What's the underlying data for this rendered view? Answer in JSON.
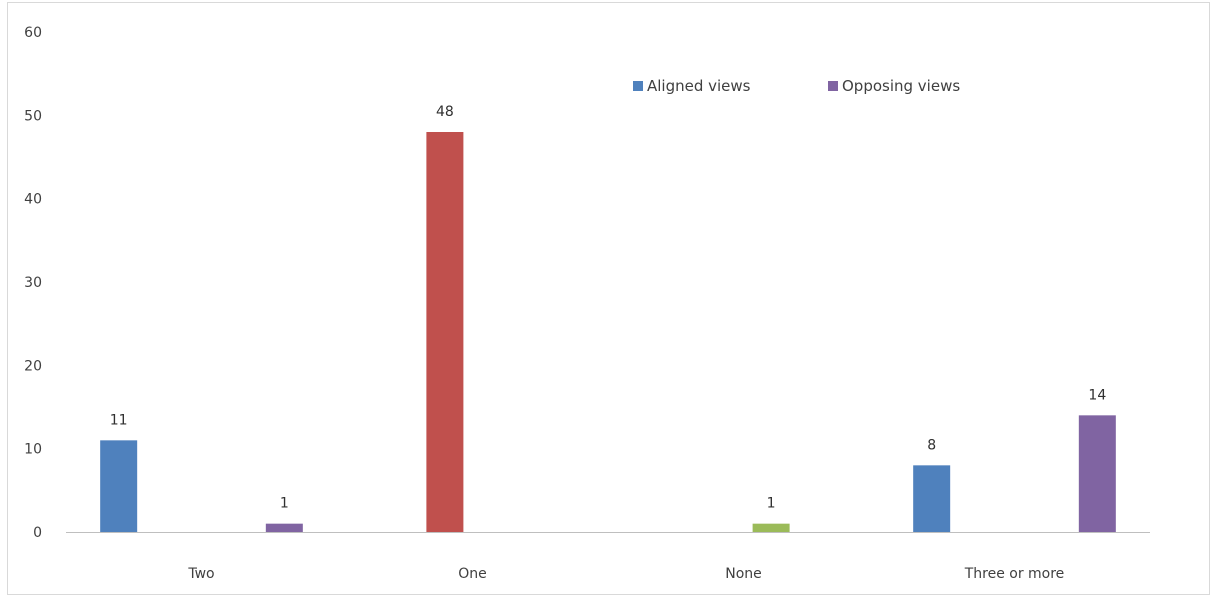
{
  "chart_data": {
    "type": "bar",
    "title": "",
    "xlabel": "",
    "ylabel": "",
    "ylim": [
      0,
      60
    ],
    "yticks": [
      "0",
      "10",
      "20",
      "30",
      "40",
      "50",
      "60"
    ],
    "grid": false,
    "categories": [
      "Two",
      "One",
      "None",
      "Three or more"
    ],
    "legend": {
      "placement": "top-right",
      "entries": [
        "Aligned views",
        "Opposing views"
      ]
    },
    "series": [
      {
        "name": "Aligned views",
        "color": "#4f81bd",
        "values": [
          11,
          null,
          null,
          8
        ]
      },
      {
        "name": "",
        "color": "#c0504d",
        "values": [
          null,
          48,
          null,
          null
        ]
      },
      {
        "name": "",
        "color": "#9bbb59",
        "values": [
          null,
          null,
          1,
          null
        ]
      },
      {
        "name": "Opposing views",
        "color": "#8064a2",
        "values": [
          1,
          null,
          null,
          14
        ]
      }
    ],
    "data_labels": true
  }
}
